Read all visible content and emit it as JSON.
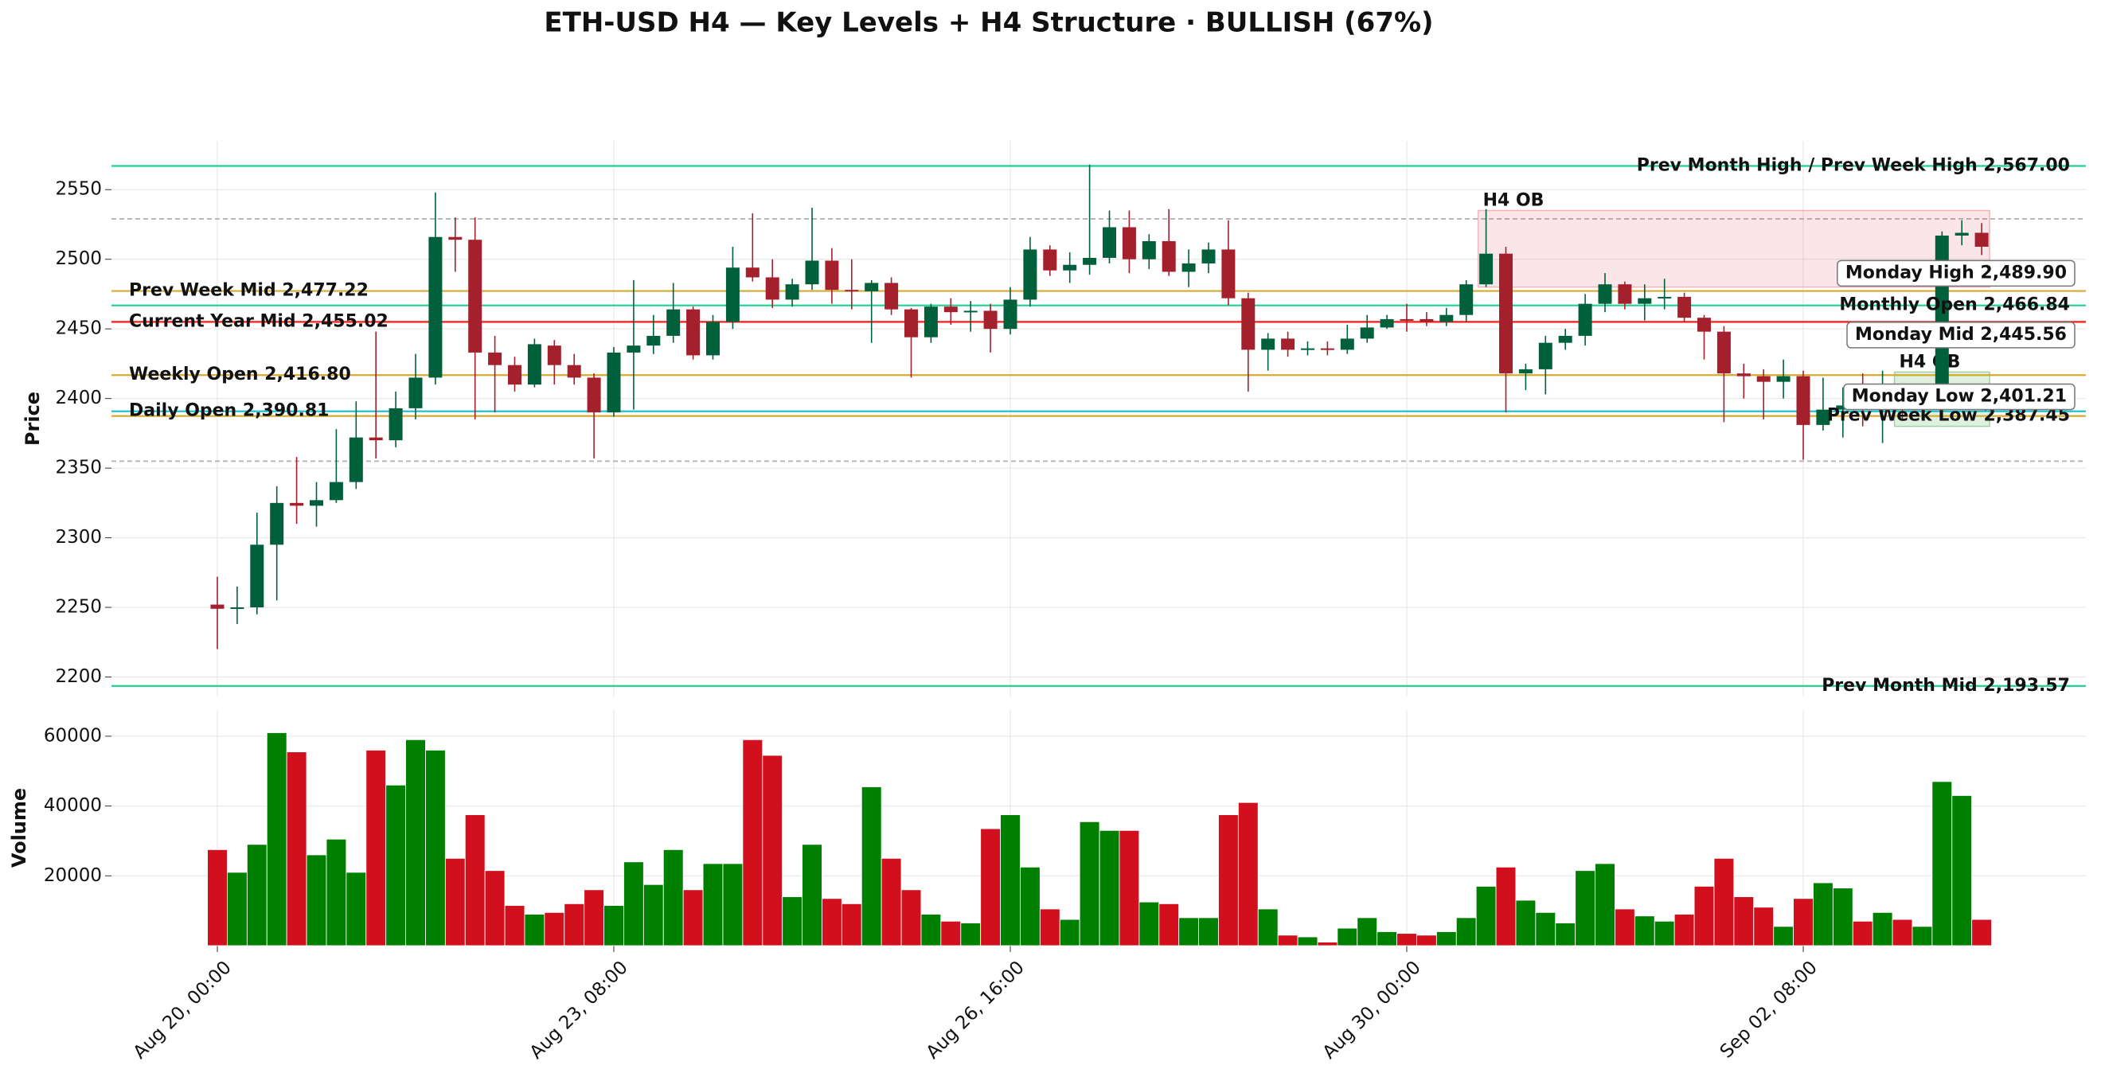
{
  "chart_data": [
    {
      "type": "candlestick",
      "title": "ETH-USD H4 — Key Levels + H4 Structure · BULLISH (67%)",
      "ylabel": "Price",
      "ylim": [
        2186,
        2585
      ],
      "yticks": [
        2200,
        2250,
        2300,
        2350,
        2400,
        2450,
        2500,
        2550
      ],
      "grid": true,
      "up_color": "#00603c",
      "down_color": "#a3202c",
      "open": [
        2252,
        2249,
        2250,
        2295,
        2325,
        2323,
        2327,
        2340,
        2372,
        2370,
        2393,
        2415,
        2516,
        2514,
        2433,
        2424,
        2410,
        2438,
        2424,
        2415,
        2390,
        2433,
        2438,
        2445,
        2464,
        2431,
        2455,
        2494,
        2487,
        2471,
        2482,
        2499,
        2478,
        2477,
        2483,
        2464,
        2444,
        2466,
        2462,
        2463,
        2450,
        2471,
        2507,
        2492,
        2496,
        2501,
        2523,
        2500,
        2513,
        2491,
        2497,
        2507,
        2472,
        2435,
        2443,
        2435,
        2436,
        2435,
        2443,
        2451,
        2457,
        2457,
        2455,
        2460,
        2482,
        2504,
        2418,
        2421,
        2440,
        2445,
        2468,
        2482,
        2468,
        2472,
        2473,
        2458,
        2448,
        2418,
        2416,
        2412,
        2416,
        2381,
        2392,
        2395,
        2394,
        2395,
        2394,
        2395,
        2517,
        2519
      ],
      "high": [
        2272,
        2265,
        2318,
        2337,
        2358,
        2340,
        2378,
        2398,
        2448,
        2405,
        2432,
        2548,
        2530,
        2530,
        2445,
        2430,
        2443,
        2442,
        2432,
        2418,
        2437,
        2485,
        2460,
        2483,
        2466,
        2460,
        2509,
        2533,
        2500,
        2486,
        2537,
        2508,
        2500,
        2485,
        2487,
        2465,
        2468,
        2472,
        2470,
        2468,
        2480,
        2516,
        2510,
        2505,
        2568,
        2535,
        2535,
        2518,
        2536,
        2507,
        2512,
        2528,
        2476,
        2447,
        2448,
        2441,
        2441,
        2453,
        2460,
        2460,
        2468,
        2462,
        2465,
        2485,
        2536,
        2509,
        2425,
        2445,
        2450,
        2475,
        2490,
        2484,
        2482,
        2486,
        2476,
        2460,
        2452,
        2425,
        2421,
        2428,
        2420,
        2415,
        2408,
        2418,
        2420,
        2410,
        2408,
        2520,
        2528,
        2526
      ],
      "low": [
        2220,
        2238,
        2245,
        2255,
        2310,
        2308,
        2325,
        2335,
        2357,
        2365,
        2385,
        2410,
        2491,
        2385,
        2390,
        2405,
        2408,
        2410,
        2410,
        2357,
        2387,
        2392,
        2432,
        2440,
        2428,
        2428,
        2450,
        2484,
        2465,
        2466,
        2478,
        2468,
        2464,
        2440,
        2460,
        2415,
        2440,
        2453,
        2448,
        2433,
        2446,
        2466,
        2488,
        2483,
        2489,
        2497,
        2490,
        2493,
        2488,
        2480,
        2490,
        2467,
        2405,
        2420,
        2430,
        2431,
        2431,
        2432,
        2440,
        2450,
        2448,
        2452,
        2452,
        2455,
        2480,
        2390,
        2406,
        2403,
        2435,
        2438,
        2462,
        2464,
        2456,
        2464,
        2455,
        2428,
        2383,
        2400,
        2385,
        2400,
        2356,
        2377,
        2372,
        2380,
        2368,
        2385,
        2385,
        2390,
        2510,
        2503
      ],
      "close": [
        2249,
        2250,
        2295,
        2325,
        2323,
        2327,
        2340,
        2372,
        2370,
        2393,
        2415,
        2516,
        2514,
        2433,
        2424,
        2410,
        2439,
        2424,
        2415,
        2390,
        2433,
        2438,
        2445,
        2464,
        2431,
        2455,
        2494,
        2487,
        2471,
        2482,
        2499,
        2478,
        2477,
        2483,
        2464,
        2444,
        2466,
        2462,
        2463,
        2450,
        2471,
        2507,
        2492,
        2496,
        2501,
        2523,
        2500,
        2513,
        2491,
        2497,
        2507,
        2472,
        2435,
        2443,
        2435,
        2436,
        2435,
        2443,
        2451,
        2457,
        2456,
        2455,
        2460,
        2482,
        2504,
        2418,
        2421,
        2440,
        2445,
        2468,
        2482,
        2468,
        2472,
        2473,
        2458,
        2448,
        2418,
        2416,
        2412,
        2416,
        2381,
        2392,
        2395,
        2394,
        2395,
        2394,
        2395,
        2517,
        2519,
        2509
      ],
      "levels": [
        {
          "label": "Prev Month High / Prev Week High 2,567.00",
          "value": 2567.0,
          "color": "#1fd08e",
          "side": "right"
        },
        {
          "label": "Prev Week Mid 2,477.22",
          "value": 2477.22,
          "color": "#d4aa30",
          "side": "left"
        },
        {
          "label": "Monthly Open 2,466.84",
          "value": 2466.84,
          "color": "#1fd08e",
          "side": "right"
        },
        {
          "label": "Current Year Mid 2,455.02",
          "value": 2455.02,
          "color": "#ff1a1a",
          "side": "left"
        },
        {
          "label": "Weekly Open 2,416.80",
          "value": 2416.8,
          "color": "#d4aa30",
          "side": "left"
        },
        {
          "label": "Daily Open 2,390.81",
          "value": 2390.81,
          "color": "#17becf",
          "side": "left"
        },
        {
          "label": "Prev Week Low 2,387.45",
          "value": 2387.45,
          "color": "#d4aa30",
          "side": "right"
        },
        {
          "label": "Prev Month Mid 2,193.57",
          "value": 2193.57,
          "color": "#1fd08e",
          "side": "right"
        }
      ],
      "boxed_levels": [
        {
          "label": "Monday High 2,489.90",
          "value": 2489.9
        },
        {
          "label": "Monday Mid 2,445.56",
          "value": 2445.56
        },
        {
          "label": "Monday Low 2,401.21",
          "value": 2401.21
        }
      ],
      "dashed_levels": [
        2529,
        2355
      ],
      "zones": [
        {
          "label": "H4 OB",
          "from": 64,
          "top": 2535,
          "bottom": 2480,
          "color": "#e05868"
        },
        {
          "label": "H4 OB",
          "from": 85,
          "top": 2419,
          "bottom": 2380,
          "color": "#2e9a2e"
        }
      ]
    },
    {
      "type": "bar",
      "ylabel": "Volume",
      "ylim": [
        0,
        67500
      ],
      "yticks": [
        20000,
        40000,
        60000
      ],
      "grid": true,
      "up_color": "#008000",
      "down_color": "#d20f1c",
      "categories": [
        "Aug 20, 00:00",
        null,
        null,
        null,
        null,
        null,
        null,
        null,
        null,
        null,
        null,
        null,
        null,
        null,
        null,
        null,
        null,
        null,
        null,
        null,
        "Aug 23, 08:00",
        null,
        null,
        null,
        null,
        null,
        null,
        null,
        null,
        null,
        null,
        null,
        null,
        null,
        null,
        null,
        null,
        null,
        null,
        null,
        "Aug 26, 16:00",
        null,
        null,
        null,
        null,
        null,
        null,
        null,
        null,
        null,
        null,
        null,
        null,
        null,
        null,
        null,
        null,
        null,
        null,
        null,
        "Aug 30, 00:00",
        null,
        null,
        null,
        null,
        null,
        null,
        null,
        null,
        null,
        null,
        null,
        null,
        null,
        null,
        null,
        null,
        null,
        null,
        null,
        "Sep 02, 08:00",
        null,
        null,
        null,
        null,
        null,
        null,
        null,
        null,
        null
      ],
      "values": [
        27500,
        21000,
        29000,
        61000,
        55500,
        26000,
        30500,
        21000,
        56000,
        46000,
        59000,
        56000,
        25000,
        37500,
        21500,
        11500,
        9000,
        9500,
        12000,
        16000,
        11500,
        24000,
        17500,
        27500,
        16000,
        23500,
        23500,
        59000,
        54500,
        14000,
        29000,
        13500,
        12000,
        45500,
        25000,
        16000,
        9000,
        7000,
        6500,
        33500,
        37500,
        22500,
        10500,
        7500,
        35500,
        33000,
        33000,
        12500,
        12000,
        8000,
        8000,
        37500,
        41000,
        10500,
        3000,
        2500,
        1000,
        5000,
        8000,
        4000,
        3500,
        3000,
        4000,
        8000,
        17000,
        22500,
        13000,
        9500,
        6500,
        21500,
        23500,
        10500,
        8500,
        7000,
        9000,
        17000,
        25000,
        14000,
        11000,
        5500,
        13500,
        18000,
        16500,
        7000,
        9500,
        7500,
        5500,
        47000,
        43000,
        7500
      ]
    }
  ]
}
